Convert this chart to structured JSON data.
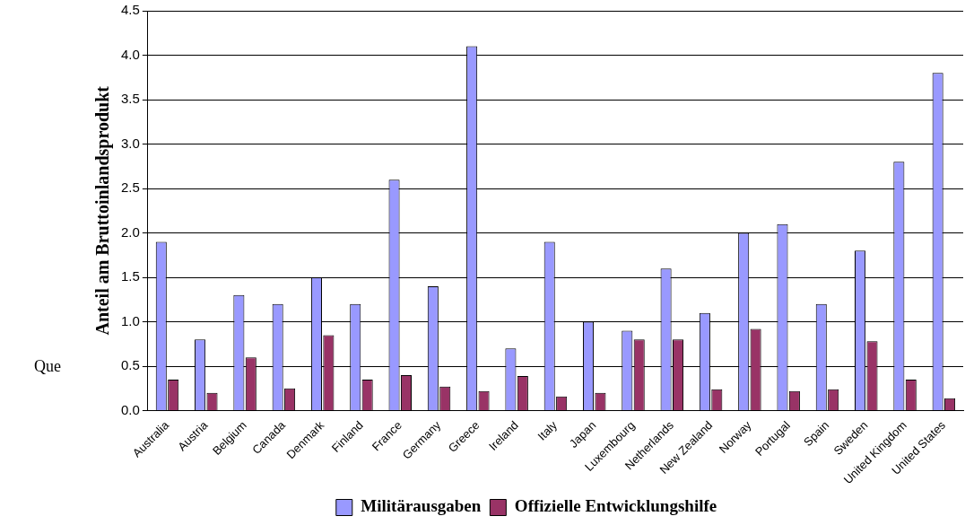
{
  "chart_data": {
    "type": "bar",
    "ylabel": "Anteil am Bruttoinlandsprodukt",
    "categories": [
      "Australia",
      "Austria",
      "Belgium",
      "Canada",
      "Denmark",
      "Finland",
      "France",
      "Germany",
      "Greece",
      "Ireland",
      "Italy",
      "Japan",
      "Luxembourg",
      "Netherlands",
      "New Zealand",
      "Norway",
      "Portugal",
      "Spain",
      "Sweden",
      "United Kingdom",
      "United States"
    ],
    "series": [
      {
        "name": "Militärausgaben",
        "color": "#9999ff",
        "values": [
          1.9,
          0.8,
          1.3,
          1.2,
          1.5,
          1.2,
          2.6,
          1.4,
          4.1,
          0.7,
          1.9,
          1.0,
          0.9,
          1.6,
          1.1,
          2.0,
          2.1,
          1.2,
          1.8,
          2.8,
          3.8
        ]
      },
      {
        "name": "Offizielle Entwicklungshilfe",
        "color": "#993366",
        "values": [
          0.35,
          0.2,
          0.6,
          0.25,
          0.85,
          0.35,
          0.4,
          0.27,
          0.22,
          0.39,
          0.16,
          0.2,
          0.8,
          0.8,
          0.24,
          0.92,
          0.22,
          0.24,
          0.78,
          0.35,
          0.14
        ]
      }
    ],
    "ylim": [
      0,
      4.5
    ],
    "yticks": [
      {
        "value": 0,
        "label": "0.0"
      },
      {
        "value": 0.5,
        "label": "0.5"
      },
      {
        "value": 1,
        "label": "1.0"
      },
      {
        "value": 1.5,
        "label": "1.5"
      },
      {
        "value": 2,
        "label": "2.0"
      },
      {
        "value": 2.5,
        "label": "2.5"
      },
      {
        "value": 3,
        "label": "3.0"
      },
      {
        "value": 3.5,
        "label": "3.5"
      },
      {
        "value": 4,
        "label": "4.0"
      },
      {
        "value": 4.5,
        "label": "4.5"
      }
    ],
    "grid": "y",
    "legend": "bottom",
    "annotations": [
      "Que"
    ]
  }
}
